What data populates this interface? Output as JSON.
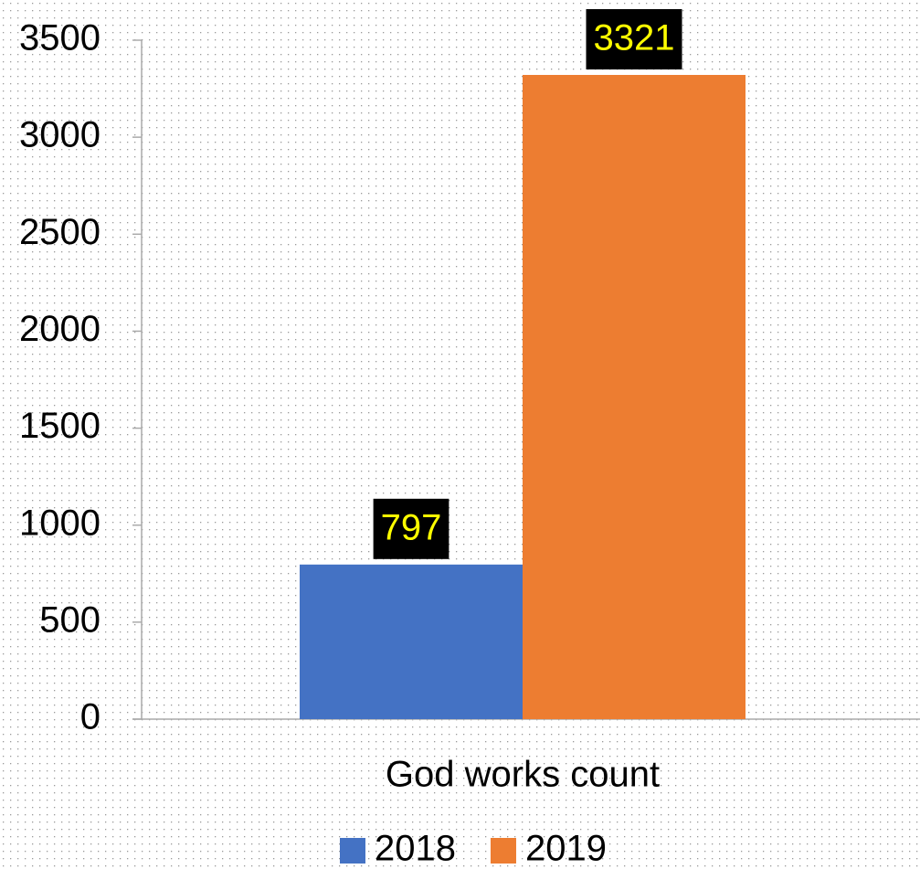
{
  "chart_data": {
    "type": "bar",
    "categories": [
      "God works count"
    ],
    "series": [
      {
        "name": "2018",
        "color": "#4472c4",
        "values": [
          797
        ]
      },
      {
        "name": "2019",
        "color": "#ed7d31",
        "values": [
          3321
        ]
      }
    ],
    "ylim": [
      0,
      3500
    ],
    "yticks": [
      0,
      500,
      1000,
      1500,
      2000,
      2500,
      3000,
      3500
    ],
    "legend": "bottom"
  }
}
